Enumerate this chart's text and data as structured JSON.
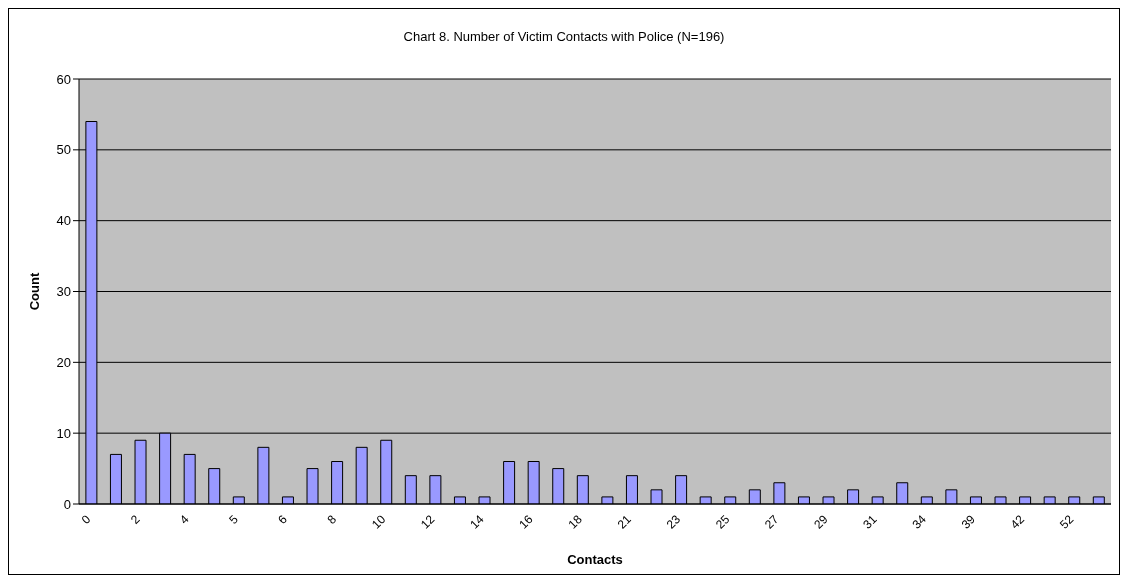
{
  "chart_data": {
    "type": "bar",
    "title": "Chart 8. Number of Victim Contacts with Police (N=196)",
    "xlabel": "Contacts",
    "ylabel": "Count",
    "categories": [
      "0",
      null,
      "2",
      null,
      "4",
      null,
      "5",
      null,
      "6",
      null,
      "8",
      null,
      "10",
      null,
      "12",
      null,
      "14",
      null,
      "16",
      null,
      "18",
      null,
      "21",
      null,
      "23",
      null,
      "25",
      null,
      "27",
      null,
      "29",
      null,
      "31",
      null,
      "34",
      null,
      "39",
      null,
      "42",
      null,
      "52",
      null
    ],
    "values": [
      54,
      7,
      9,
      10,
      7,
      5,
      1,
      8,
      1,
      5,
      6,
      8,
      9,
      4,
      4,
      1,
      1,
      6,
      6,
      5,
      4,
      1,
      4,
      2,
      4,
      1,
      1,
      2,
      3,
      1,
      1,
      2,
      1,
      3,
      1,
      2,
      1,
      1,
      1,
      1,
      1,
      1
    ],
    "color": "#9999ff",
    "ylim": [
      0,
      60
    ],
    "yticks": [
      0,
      10,
      20,
      30,
      40,
      50,
      60
    ],
    "grid": "y"
  }
}
